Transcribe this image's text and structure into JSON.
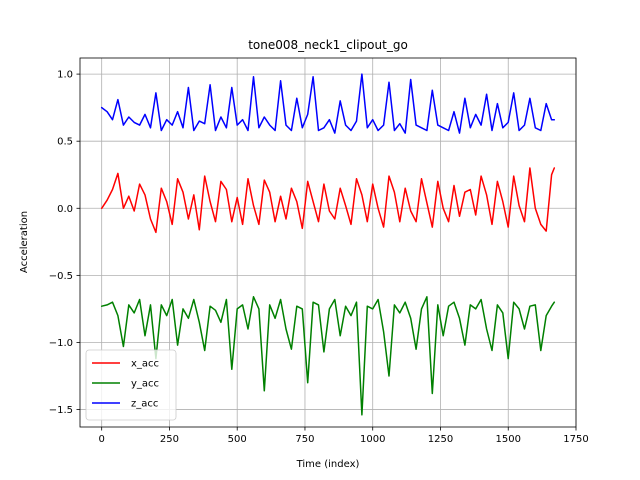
{
  "chart_data": {
    "type": "line",
    "title": "tone008_neck1_clipout_go",
    "xlabel": "Time (index)",
    "ylabel": "Acceleration",
    "xlim": [
      -80,
      1750
    ],
    "ylim": [
      -1.63,
      1.12
    ],
    "xticks": [
      0,
      250,
      500,
      750,
      1000,
      1250,
      1500,
      1750
    ],
    "xtick_labels": [
      "0",
      "250",
      "500",
      "750",
      "1000",
      "1250",
      "1500",
      "1750"
    ],
    "yticks": [
      -1.5,
      -1.0,
      -0.5,
      0.0,
      0.5,
      1.0
    ],
    "ytick_labels": [
      "−1.5",
      "−1.0",
      "−0.5",
      "0.0",
      "0.5",
      "1.0"
    ],
    "grid": true,
    "legend_position": "lower-left",
    "x": [
      0,
      20,
      40,
      60,
      80,
      100,
      120,
      140,
      160,
      180,
      200,
      220,
      240,
      260,
      280,
      300,
      320,
      340,
      360,
      380,
      400,
      420,
      440,
      460,
      480,
      500,
      520,
      540,
      560,
      580,
      600,
      620,
      640,
      660,
      680,
      700,
      720,
      740,
      760,
      780,
      800,
      820,
      840,
      860,
      880,
      900,
      920,
      940,
      960,
      980,
      1000,
      1020,
      1040,
      1060,
      1080,
      1100,
      1120,
      1140,
      1160,
      1180,
      1200,
      1220,
      1240,
      1260,
      1280,
      1300,
      1320,
      1340,
      1360,
      1380,
      1400,
      1420,
      1440,
      1460,
      1480,
      1500,
      1520,
      1540,
      1560,
      1580,
      1600,
      1620,
      1640,
      1660,
      1670
    ],
    "series": [
      {
        "name": "x_acc",
        "color": "#ff0000",
        "values": [
          0.0,
          0.06,
          0.14,
          0.26,
          0.0,
          0.09,
          -0.02,
          0.18,
          0.1,
          -0.08,
          -0.18,
          0.15,
          0.05,
          -0.12,
          0.22,
          0.12,
          -0.08,
          0.1,
          -0.16,
          0.24,
          0.05,
          -0.1,
          0.2,
          0.14,
          -0.1,
          0.08,
          -0.12,
          0.22,
          0.02,
          -0.12,
          0.21,
          0.12,
          -0.1,
          0.09,
          -0.08,
          0.15,
          0.05,
          -0.15,
          0.2,
          0.05,
          -0.1,
          0.18,
          -0.02,
          -0.08,
          0.15,
          0.02,
          -0.12,
          0.22,
          0.1,
          -0.1,
          0.18,
          0.0,
          -0.14,
          0.24,
          0.12,
          -0.1,
          0.15,
          -0.02,
          -0.1,
          0.22,
          0.04,
          -0.14,
          0.2,
          0.0,
          -0.1,
          0.17,
          -0.06,
          0.12,
          0.14,
          -0.05,
          0.24,
          0.1,
          -0.12,
          0.2,
          0.05,
          -0.14,
          0.24,
          0.02,
          -0.1,
          0.3,
          0.0,
          -0.12,
          -0.17,
          0.25,
          0.3
        ]
      },
      {
        "name": "y_acc",
        "color": "#008000",
        "values": [
          -0.73,
          -0.72,
          -0.7,
          -0.8,
          -1.03,
          -0.72,
          -0.78,
          -0.68,
          -0.95,
          -0.72,
          -1.12,
          -0.72,
          -0.8,
          -0.68,
          -1.02,
          -0.75,
          -0.82,
          -0.68,
          -0.85,
          -1.06,
          -0.73,
          -0.76,
          -0.85,
          -0.68,
          -1.2,
          -0.75,
          -0.72,
          -0.9,
          -0.66,
          -0.75,
          -1.36,
          -0.72,
          -0.82,
          -0.68,
          -0.9,
          -1.05,
          -0.73,
          -0.75,
          -1.3,
          -0.7,
          -0.72,
          -1.07,
          -0.75,
          -0.68,
          -0.95,
          -0.73,
          -0.8,
          -0.7,
          -1.54,
          -0.73,
          -0.75,
          -0.68,
          -0.92,
          -1.25,
          -0.72,
          -0.78,
          -0.7,
          -0.82,
          -1.05,
          -0.75,
          -0.66,
          -1.38,
          -0.72,
          -0.95,
          -0.73,
          -0.7,
          -0.82,
          -1.02,
          -0.72,
          -0.75,
          -0.68,
          -0.9,
          -1.06,
          -0.72,
          -0.78,
          -1.12,
          -0.7,
          -0.75,
          -0.9,
          -0.73,
          -0.72,
          -1.06,
          -0.8,
          -0.73,
          -0.7
        ]
      },
      {
        "name": "z_acc",
        "color": "#0000ff",
        "values": [
          0.75,
          0.72,
          0.66,
          0.81,
          0.62,
          0.68,
          0.64,
          0.62,
          0.7,
          0.6,
          0.86,
          0.58,
          0.66,
          0.62,
          0.72,
          0.6,
          0.9,
          0.58,
          0.65,
          0.63,
          0.92,
          0.58,
          0.68,
          0.6,
          0.9,
          0.62,
          0.66,
          0.58,
          0.98,
          0.6,
          0.68,
          0.62,
          0.58,
          0.95,
          0.62,
          0.58,
          0.82,
          0.6,
          0.7,
          0.98,
          0.58,
          0.6,
          0.66,
          0.56,
          0.8,
          0.62,
          0.58,
          0.65,
          1.0,
          0.6,
          0.66,
          0.58,
          0.62,
          0.94,
          0.58,
          0.63,
          0.56,
          0.96,
          0.62,
          0.6,
          0.58,
          0.88,
          0.62,
          0.6,
          0.58,
          0.72,
          0.56,
          0.82,
          0.6,
          0.7,
          0.62,
          0.85,
          0.58,
          0.78,
          0.6,
          0.64,
          0.86,
          0.58,
          0.62,
          0.82,
          0.6,
          0.58,
          0.78,
          0.66,
          0.66
        ]
      }
    ]
  }
}
